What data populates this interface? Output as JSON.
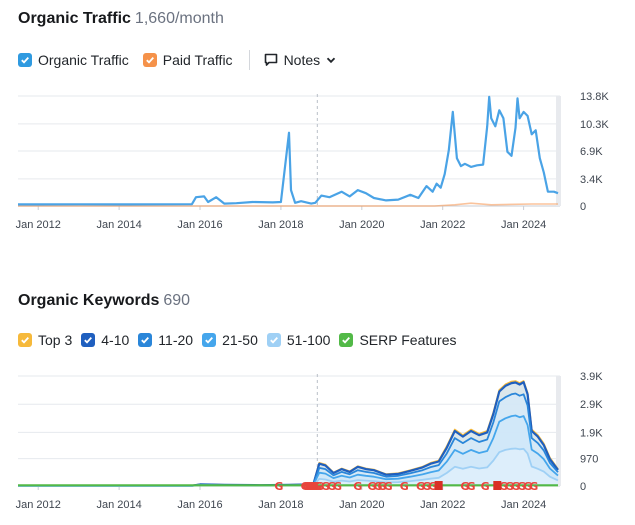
{
  "traffic": {
    "title": "Organic Traffic",
    "metric": "1,660/month",
    "legend": [
      {
        "label": "Organic Traffic",
        "color": "#2f9ae0"
      },
      {
        "label": "Paid Traffic",
        "color": "#f5924a"
      }
    ],
    "notes_label": "Notes"
  },
  "keywords": {
    "title": "Organic Keywords",
    "metric": "690",
    "legend": [
      {
        "label": "Top 3",
        "color": "#f6b93b"
      },
      {
        "label": "4-10",
        "color": "#1f5fbf"
      },
      {
        "label": "11-20",
        "color": "#2a86d9"
      },
      {
        "label": "21-50",
        "color": "#45a6ec"
      },
      {
        "label": "51-100",
        "color": "#9fd0f5"
      },
      {
        "label": "SERP Features",
        "color": "#52b947"
      }
    ]
  },
  "chart_data": [
    {
      "type": "line",
      "xlabel": "",
      "ylabel": "",
      "xlim": [
        2011.5,
        2024.9
      ],
      "ylim": [
        0,
        13800
      ],
      "x_tick_labels": [
        "Jan 2012",
        "Jan 2014",
        "Jan 2016",
        "Jan 2018",
        "Jan 2020",
        "Jan 2022",
        "Jan 2024"
      ],
      "x_ticks": [
        2012,
        2014,
        2016,
        2018,
        2020,
        2022,
        2024
      ],
      "y_tick_labels": [
        "13.8K",
        "10.3K",
        "6.9K",
        "3.4K",
        "0"
      ],
      "y_ticks": [
        13800,
        10300,
        6900,
        3400,
        0
      ],
      "grid": true,
      "annotation_line_x": 2018.9,
      "series": [
        {
          "name": "Organic Traffic",
          "color": "#4aa3e6",
          "x": [
            2011.5,
            2012,
            2013,
            2014,
            2015,
            2015.8,
            2015.9,
            2016.1,
            2016.2,
            2016.4,
            2016.6,
            2016.9,
            2017.3,
            2017.8,
            2018.0,
            2018.2,
            2018.25,
            2018.35,
            2018.5,
            2018.75,
            2018.85,
            2019.0,
            2019.2,
            2019.5,
            2019.7,
            2019.9,
            2020.1,
            2020.3,
            2020.6,
            2020.9,
            2021.2,
            2021.4,
            2021.6,
            2021.75,
            2021.85,
            2021.95,
            2022.05,
            2022.15,
            2022.25,
            2022.35,
            2022.45,
            2022.55,
            2022.7,
            2022.85,
            2023.0,
            2023.1,
            2023.15,
            2023.2,
            2023.3,
            2023.4,
            2023.5,
            2023.6,
            2023.7,
            2023.8,
            2023.85,
            2023.9,
            2024.0,
            2024.1,
            2024.2,
            2024.3,
            2024.4,
            2024.5,
            2024.6,
            2024.75,
            2024.85
          ],
          "values": [
            200,
            200,
            210,
            200,
            210,
            220,
            1100,
            1200,
            500,
            1100,
            300,
            350,
            500,
            450,
            500,
            9200,
            2000,
            400,
            600,
            300,
            400,
            1300,
            1100,
            1800,
            1200,
            2000,
            1600,
            1000,
            700,
            800,
            1400,
            1000,
            2500,
            1800,
            2800,
            2300,
            4000,
            7000,
            11800,
            6000,
            5000,
            5300,
            4900,
            5100,
            5200,
            10000,
            13700,
            11000,
            10000,
            12000,
            11000,
            6800,
            6300,
            9800,
            13500,
            11000,
            11800,
            11300,
            9000,
            9500,
            6000,
            4200,
            1800,
            1800,
            1600
          ]
        },
        {
          "name": "Paid Traffic",
          "color": "#f5924a",
          "x": [
            2011.5,
            2021.8,
            2022.3,
            2022.7,
            2023.2,
            2024.2,
            2024.85
          ],
          "values": [
            0,
            0,
            150,
            350,
            150,
            250,
            250
          ]
        }
      ]
    },
    {
      "type": "area",
      "xlabel": "",
      "ylabel": "",
      "xlim": [
        2011.5,
        2024.9
      ],
      "ylim": [
        0,
        3900
      ],
      "x_tick_labels": [
        "Jan 2012",
        "Jan 2014",
        "Jan 2016",
        "Jan 2018",
        "Jan 2020",
        "Jan 2022",
        "Jan 2024"
      ],
      "x_ticks": [
        2012,
        2014,
        2016,
        2018,
        2020,
        2022,
        2024
      ],
      "y_tick_labels": [
        "3.9K",
        "2.9K",
        "1.9K",
        "970",
        "0"
      ],
      "y_ticks": [
        3900,
        2900,
        1900,
        970,
        0
      ],
      "grid": true,
      "annotation_line_x": 2018.9,
      "x": [
        2011.5,
        2015.8,
        2016.0,
        2016.6,
        2017.5,
        2018.2,
        2018.8,
        2018.95,
        2019.1,
        2019.3,
        2019.5,
        2019.7,
        2019.9,
        2020.1,
        2020.3,
        2020.6,
        2020.9,
        2021.2,
        2021.5,
        2021.7,
        2021.9,
        2022.1,
        2022.3,
        2022.5,
        2022.7,
        2022.9,
        2023.1,
        2023.25,
        2023.4,
        2023.55,
        2023.7,
        2023.8,
        2023.9,
        2024.0,
        2024.1,
        2024.2,
        2024.35,
        2024.5,
        2024.65,
        2024.85
      ],
      "series": [
        {
          "name": "Top 3",
          "color": "#f6b93b",
          "values": [
            10,
            10,
            60,
            40,
            30,
            40,
            60,
            820,
            760,
            480,
            620,
            520,
            700,
            620,
            580,
            420,
            450,
            560,
            680,
            820,
            900,
            1400,
            2000,
            1800,
            2000,
            1850,
            1950,
            2600,
            3400,
            3600,
            3700,
            3720,
            3650,
            3720,
            3300,
            2000,
            1800,
            1500,
            1000,
            600
          ]
        },
        {
          "name": "4-10",
          "color": "#1f5fbf",
          "values": [
            10,
            10,
            55,
            38,
            28,
            38,
            55,
            790,
            730,
            460,
            600,
            500,
            680,
            600,
            560,
            400,
            430,
            540,
            660,
            790,
            870,
            1350,
            1950,
            1750,
            1950,
            1800,
            1900,
            2550,
            3350,
            3550,
            3650,
            3670,
            3600,
            3680,
            3250,
            1950,
            1750,
            1450,
            950,
            570
          ]
        },
        {
          "name": "11-20",
          "color": "#2a86d9",
          "values": [
            8,
            8,
            45,
            30,
            22,
            30,
            45,
            640,
            600,
            380,
            500,
            420,
            560,
            500,
            460,
            330,
            360,
            450,
            560,
            670,
            740,
            1150,
            1700,
            1520,
            1700,
            1560,
            1650,
            2250,
            3000,
            3150,
            3250,
            3280,
            3200,
            3250,
            2850,
            1700,
            1520,
            1260,
            820,
            490
          ]
        },
        {
          "name": "21-50",
          "color": "#45a6ec",
          "values": [
            6,
            6,
            35,
            22,
            16,
            22,
            35,
            470,
            440,
            280,
            360,
            300,
            400,
            360,
            330,
            240,
            260,
            330,
            410,
            490,
            550,
            860,
            1280,
            1140,
            1280,
            1170,
            1240,
            1700,
            2280,
            2400,
            2480,
            2500,
            2440,
            2480,
            2160,
            1290,
            1150,
            950,
            620,
            370
          ]
        },
        {
          "name": "51-100",
          "color": "#9fd0f5",
          "values": [
            4,
            4,
            20,
            14,
            10,
            14,
            20,
            250,
            230,
            150,
            190,
            160,
            210,
            190,
            175,
            125,
            140,
            175,
            220,
            260,
            290,
            460,
            680,
            610,
            680,
            620,
            660,
            900,
            1200,
            1280,
            1320,
            1330,
            1300,
            1320,
            1150,
            690,
            610,
            510,
            330,
            200
          ]
        },
        {
          "name": "SERP Features",
          "color": "#52b947",
          "values": [
            25,
            25,
            25,
            25,
            25,
            25,
            25,
            25,
            25,
            25,
            25,
            25,
            25,
            25,
            25,
            25,
            25,
            25,
            25,
            25,
            25,
            25,
            25,
            25,
            25,
            25,
            25,
            25,
            25,
            25,
            25,
            25,
            25,
            25,
            25,
            25,
            25,
            25,
            25,
            25
          ]
        }
      ],
      "google_markers_x": [
        2017.95,
        2018.6,
        2018.65,
        2018.7,
        2018.75,
        2018.8,
        2018.85,
        2018.9,
        2018.95,
        2019.1,
        2019.25,
        2019.4,
        2019.9,
        2020.25,
        2020.4,
        2020.5,
        2020.65,
        2021.05,
        2021.45,
        2021.6,
        2021.75,
        2022.55,
        2022.7,
        2023.05,
        2023.5,
        2023.65,
        2023.8,
        2023.95,
        2024.1,
        2024.25
      ],
      "red_markers_x": [
        2021.9,
        2023.35
      ]
    }
  ]
}
